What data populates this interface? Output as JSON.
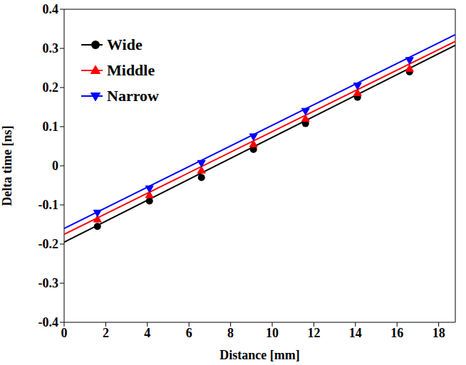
{
  "chart_data": {
    "type": "scatter",
    "xlabel": "Distance [mm]",
    "ylabel": "Delta time [ns]",
    "xlim": [
      0,
      18.8
    ],
    "xticks": [
      0,
      2,
      4,
      6,
      8,
      10,
      12,
      14,
      16,
      18
    ],
    "ylim": [
      -0.4,
      0.4
    ],
    "yticks": [
      -0.4,
      -0.3,
      -0.2,
      -0.1,
      0,
      0.1,
      0.2,
      0.3,
      0.4
    ],
    "grid": false,
    "legend": "upper left",
    "x": [
      1.6,
      4.1,
      6.6,
      9.1,
      11.6,
      14.1,
      16.6
    ],
    "series": [
      {
        "name": "Wide",
        "color": "#000000",
        "marker": "circle",
        "values": [
          -0.155,
          -0.09,
          -0.03,
          0.042,
          0.108,
          0.175,
          0.24
        ],
        "fit": {
          "x": [
            0,
            18.8
          ],
          "values": [
            -0.195,
            0.308
          ]
        }
      },
      {
        "name": "Middle",
        "color": "#ff0000",
        "marker": "triangle-up",
        "values": [
          -0.137,
          -0.075,
          -0.012,
          0.055,
          0.12,
          0.186,
          0.248
        ],
        "fit": {
          "x": [
            0,
            18.8
          ],
          "values": [
            -0.175,
            0.318
          ]
        }
      },
      {
        "name": "Narrow",
        "color": "#0000ff",
        "marker": "triangle-down",
        "values": [
          -0.12,
          -0.058,
          0.007,
          0.075,
          0.14,
          0.205,
          0.27
        ],
        "fit": {
          "x": [
            0,
            18.8
          ],
          "values": [
            -0.16,
            0.335
          ]
        }
      }
    ]
  }
}
